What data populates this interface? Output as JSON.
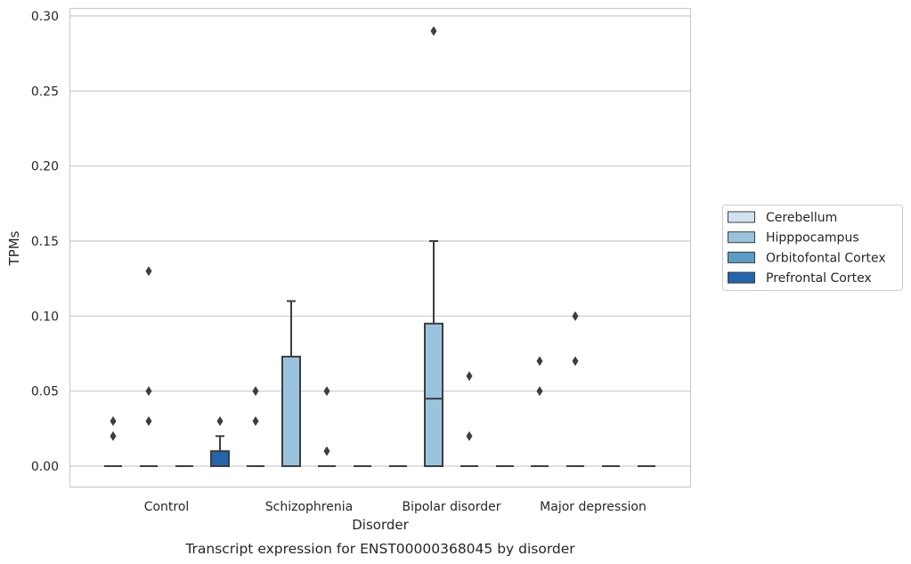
{
  "chart_data": {
    "type": "box",
    "caption": "Transcript expression for ENST00000368045 by disorder",
    "xlabel": "Disorder",
    "ylabel": "TPMs",
    "ylim": [
      -0.014,
      0.305
    ],
    "yticks": [
      0.0,
      0.05,
      0.1,
      0.15,
      0.2,
      0.25,
      0.3
    ],
    "ytick_labels": [
      "0.00",
      "0.05",
      "0.10",
      "0.15",
      "0.20",
      "0.25",
      "0.30"
    ],
    "grid": "horizontal",
    "legend_position": "right",
    "categories": [
      "Control",
      "Schizophrenia",
      "Bipolar disorder",
      "Major depression"
    ],
    "series": [
      {
        "name": "Cerebellum",
        "color": "#d2e2f0",
        "boxes": [
          {
            "q1": 0.0,
            "median": 0.0,
            "q3": 0.0,
            "whislo": 0.0,
            "whishi": 0.0,
            "fliers": [
              0.02,
              0.03
            ]
          },
          {
            "q1": 0.0,
            "median": 0.0,
            "q3": 0.0,
            "whislo": 0.0,
            "whishi": 0.0,
            "fliers": [
              0.03,
              0.05
            ]
          },
          {
            "q1": 0.0,
            "median": 0.0,
            "q3": 0.0,
            "whislo": 0.0,
            "whishi": 0.0,
            "fliers": []
          },
          {
            "q1": 0.0,
            "median": 0.0,
            "q3": 0.0,
            "whislo": 0.0,
            "whishi": 0.0,
            "fliers": [
              0.05,
              0.07
            ]
          }
        ]
      },
      {
        "name": "Hipppocampus",
        "color": "#9ac4dd",
        "boxes": [
          {
            "q1": 0.0,
            "median": 0.0,
            "q3": 0.0,
            "whislo": 0.0,
            "whishi": 0.0,
            "fliers": [
              0.03,
              0.05,
              0.13
            ]
          },
          {
            "q1": 0.0,
            "median": 0.0,
            "q3": 0.073,
            "whislo": 0.0,
            "whishi": 0.11,
            "fliers": []
          },
          {
            "q1": 0.0,
            "median": 0.045,
            "q3": 0.095,
            "whislo": 0.0,
            "whishi": 0.15,
            "fliers": [
              0.29
            ]
          },
          {
            "q1": 0.0,
            "median": 0.0,
            "q3": 0.0,
            "whislo": 0.0,
            "whishi": 0.0,
            "fliers": [
              0.07,
              0.1
            ]
          }
        ]
      },
      {
        "name": "Orbitofontal Cortex",
        "color": "#5b9bc7",
        "boxes": [
          {
            "q1": 0.0,
            "median": 0.0,
            "q3": 0.0,
            "whislo": 0.0,
            "whishi": 0.0,
            "fliers": []
          },
          {
            "q1": 0.0,
            "median": 0.0,
            "q3": 0.0,
            "whislo": 0.0,
            "whishi": 0.0,
            "fliers": [
              0.01,
              0.05
            ]
          },
          {
            "q1": 0.0,
            "median": 0.0,
            "q3": 0.0,
            "whislo": 0.0,
            "whishi": 0.0,
            "fliers": [
              0.02,
              0.06
            ]
          },
          {
            "q1": 0.0,
            "median": 0.0,
            "q3": 0.0,
            "whislo": 0.0,
            "whishi": 0.0,
            "fliers": []
          }
        ]
      },
      {
        "name": "Prefrontal Cortex",
        "color": "#2166ac",
        "boxes": [
          {
            "q1": 0.0,
            "median": 0.0,
            "q3": 0.01,
            "whislo": 0.0,
            "whishi": 0.02,
            "fliers": [
              0.03
            ]
          },
          {
            "q1": 0.0,
            "median": 0.0,
            "q3": 0.0,
            "whislo": 0.0,
            "whishi": 0.0,
            "fliers": []
          },
          {
            "q1": 0.0,
            "median": 0.0,
            "q3": 0.0,
            "whislo": 0.0,
            "whishi": 0.0,
            "fliers": []
          },
          {
            "q1": 0.0,
            "median": 0.0,
            "q3": 0.0,
            "whislo": 0.0,
            "whishi": 0.0,
            "fliers": []
          }
        ]
      }
    ]
  }
}
